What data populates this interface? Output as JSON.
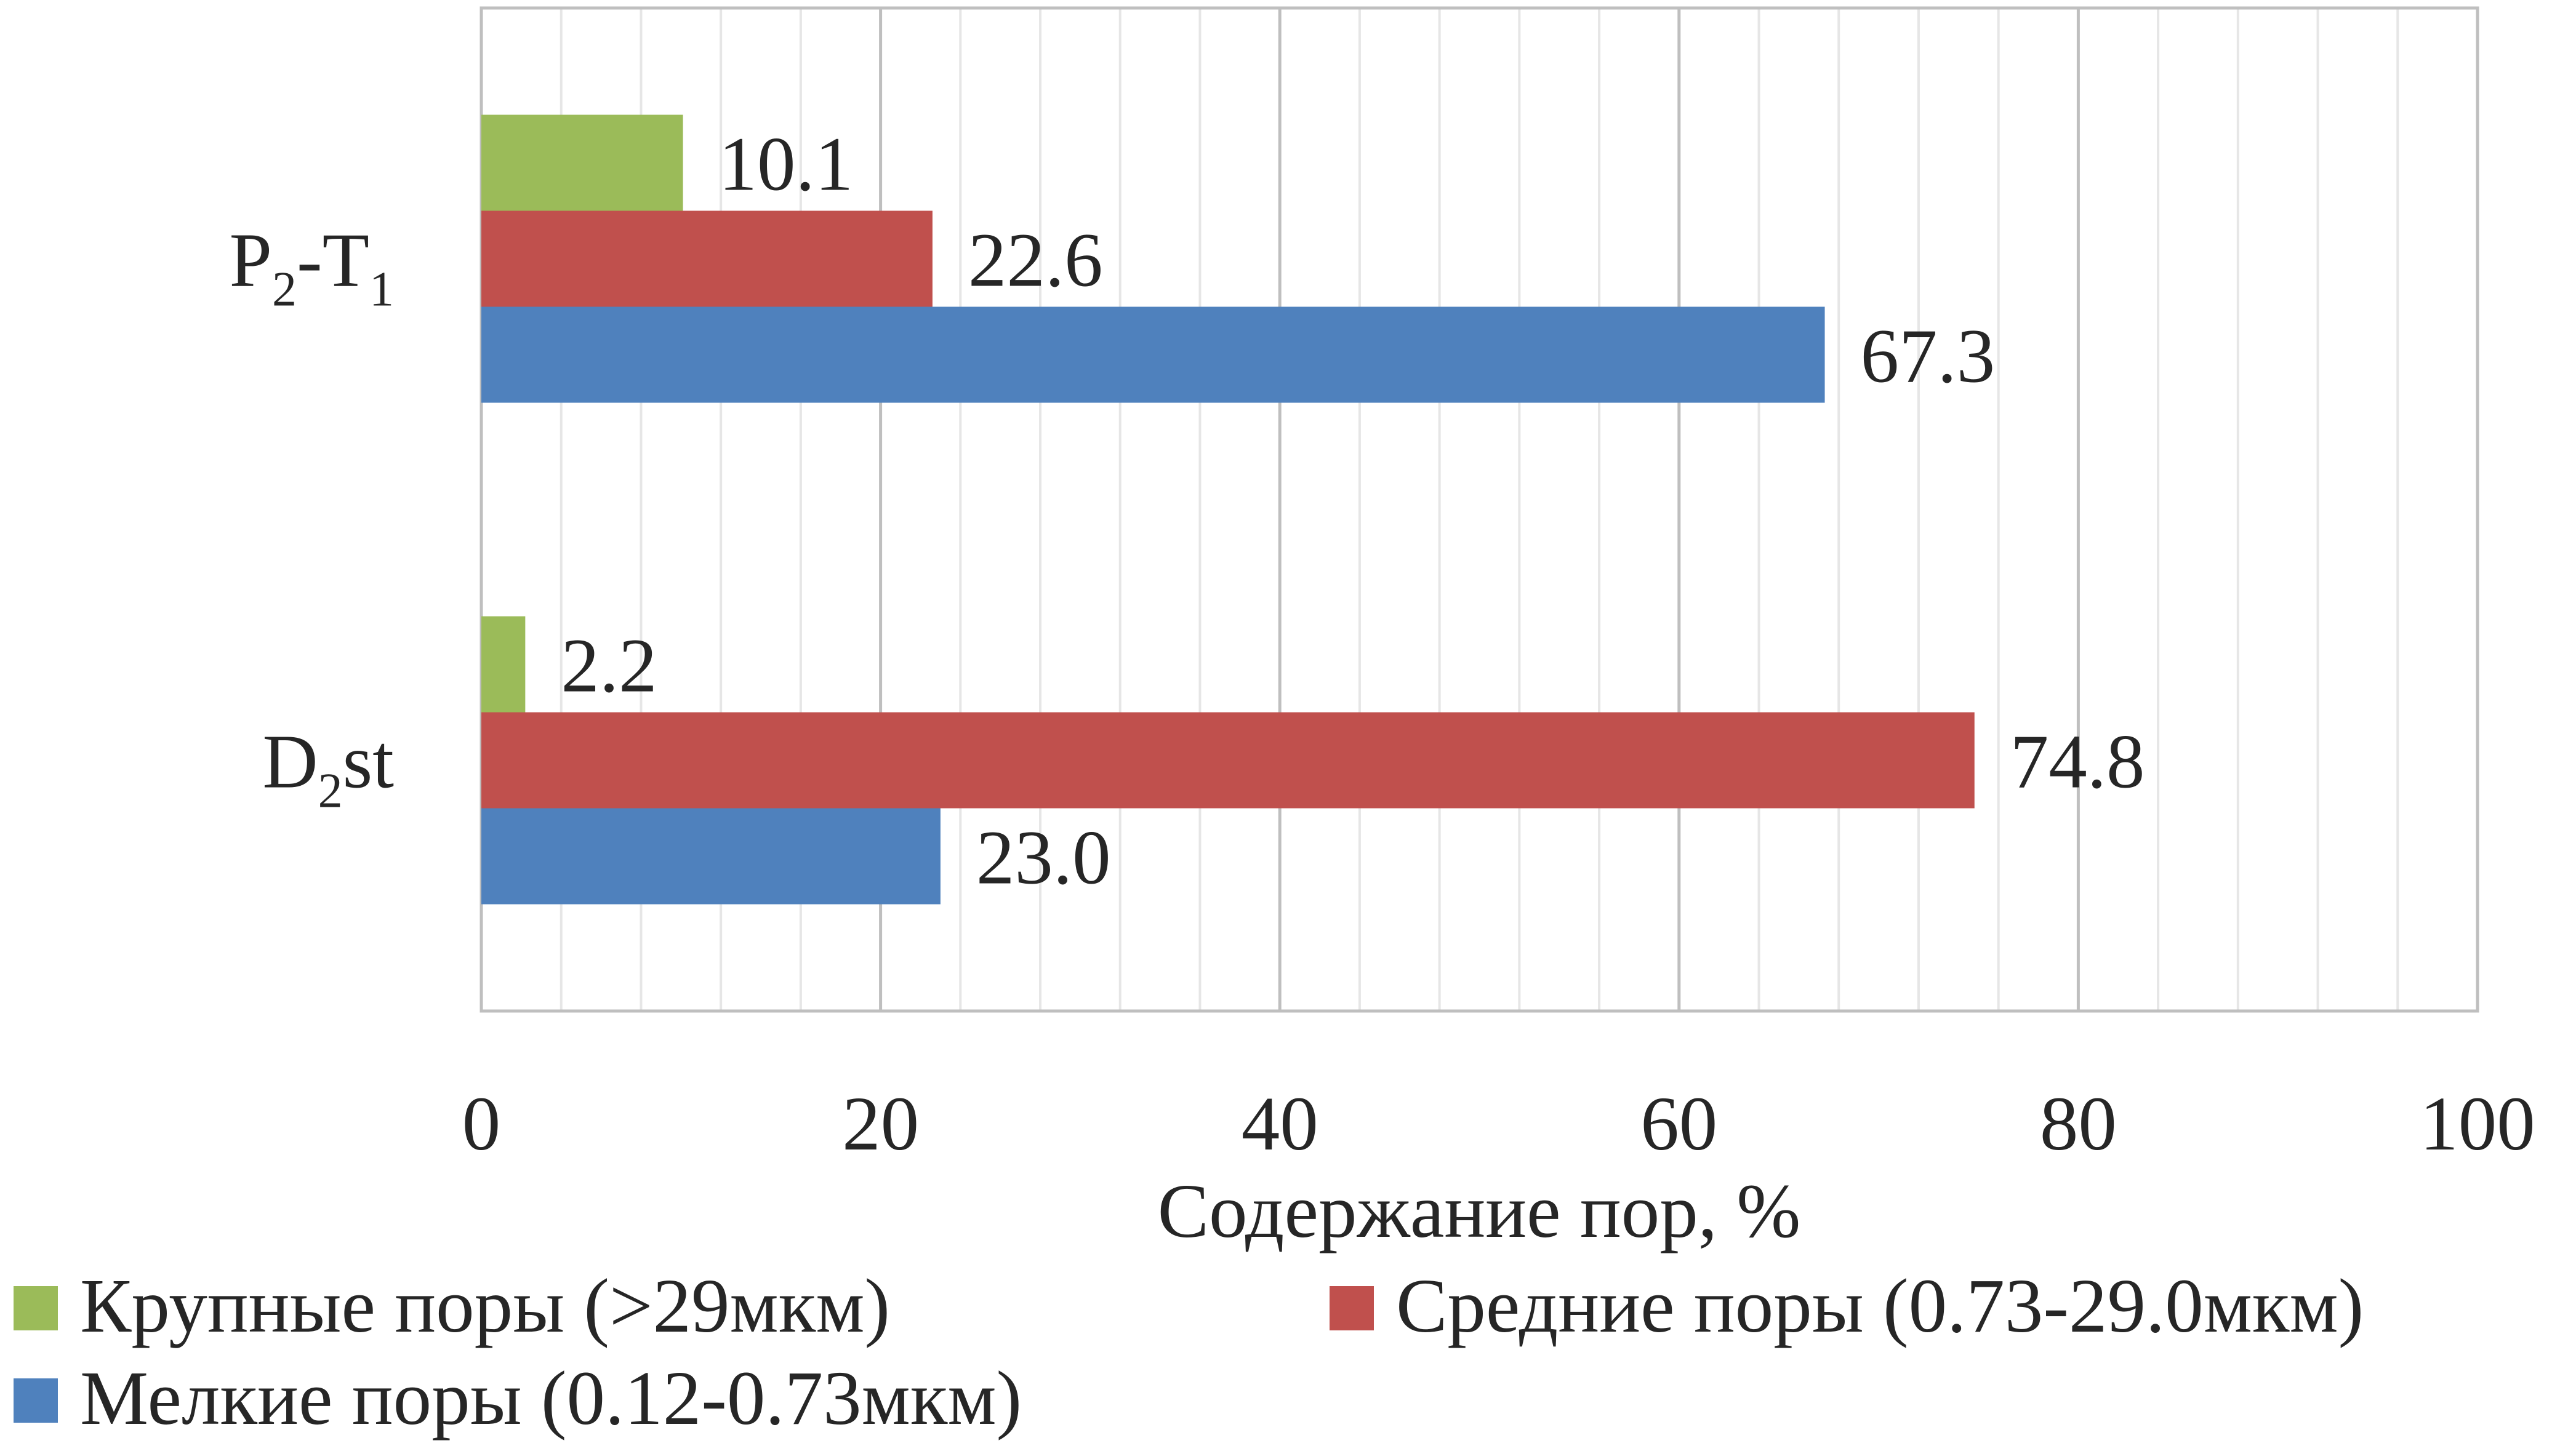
{
  "chart_data": {
    "type": "bar",
    "orientation": "horizontal",
    "categories": [
      {
        "base": "P",
        "sub1": "2",
        "mid": "-T",
        "sub2": "1",
        "tail": ""
      },
      {
        "base": "D",
        "sub1": "2",
        "mid": "st",
        "sub2": "",
        "tail": ""
      }
    ],
    "category_text": [
      "P2-T1",
      "D2st"
    ],
    "series": [
      {
        "name": "Крупные поры (>29мкм)",
        "color": "#9BBB59",
        "values": [
          10.1,
          2.2
        ],
        "labels": [
          "10.1",
          "2.2"
        ]
      },
      {
        "name": "Средние поры (0.73-29.0мкм)",
        "color": "#C0504D",
        "values": [
          22.6,
          74.8
        ],
        "labels": [
          "22.6",
          "74.8"
        ]
      },
      {
        "name": "Мелкие поры (0.12-0.73мкм)",
        "color": "#4F81BD",
        "values": [
          67.3,
          23.0
        ],
        "labels": [
          "67.3",
          "23.0"
        ]
      }
    ],
    "xlim": [
      0,
      100
    ],
    "xticks": [
      "0",
      "20",
      "40",
      "60",
      "80",
      "100"
    ],
    "xlabel": "Содержание пор, %",
    "ylabel": "",
    "title": "",
    "grid": true,
    "legend_position": "bottom"
  }
}
